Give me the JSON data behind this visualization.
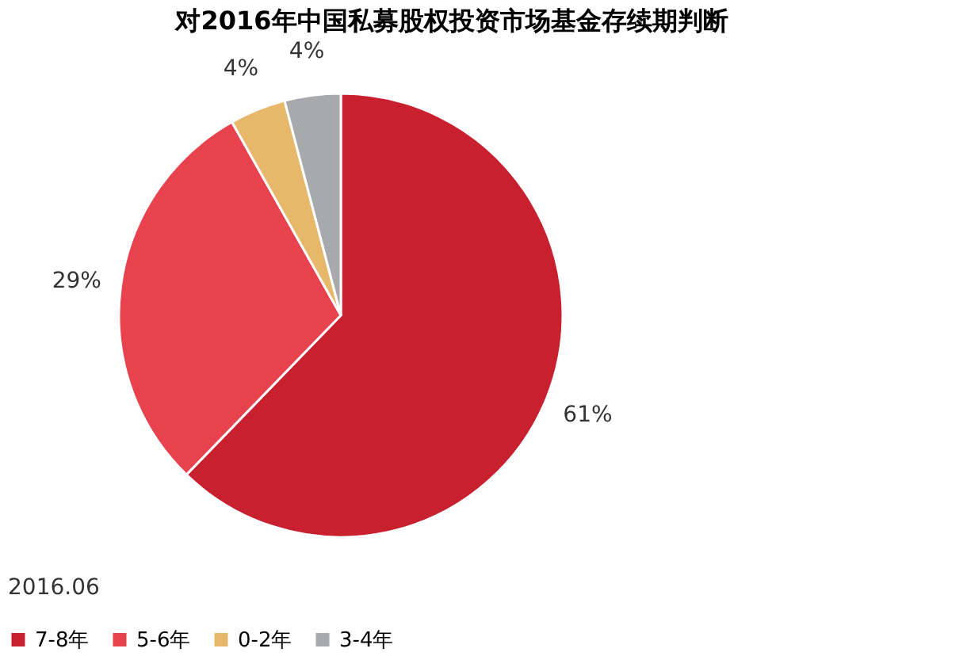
{
  "chart_data": {
    "type": "pie",
    "title": "对2016年中国私募股权投资市场基金存续期判断",
    "categories": [
      "7-8年",
      "5-6年",
      "0-2年",
      "3-4年"
    ],
    "values": [
      61,
      29,
      4,
      4
    ],
    "colors": [
      "#c8202e",
      "#e8424f",
      "#e8b86a",
      "#a8a9ad"
    ],
    "value_labels": [
      "61%",
      "29%",
      "4%",
      "4%"
    ],
    "legend": "bottom",
    "annotations": [
      "2016.06"
    ]
  }
}
